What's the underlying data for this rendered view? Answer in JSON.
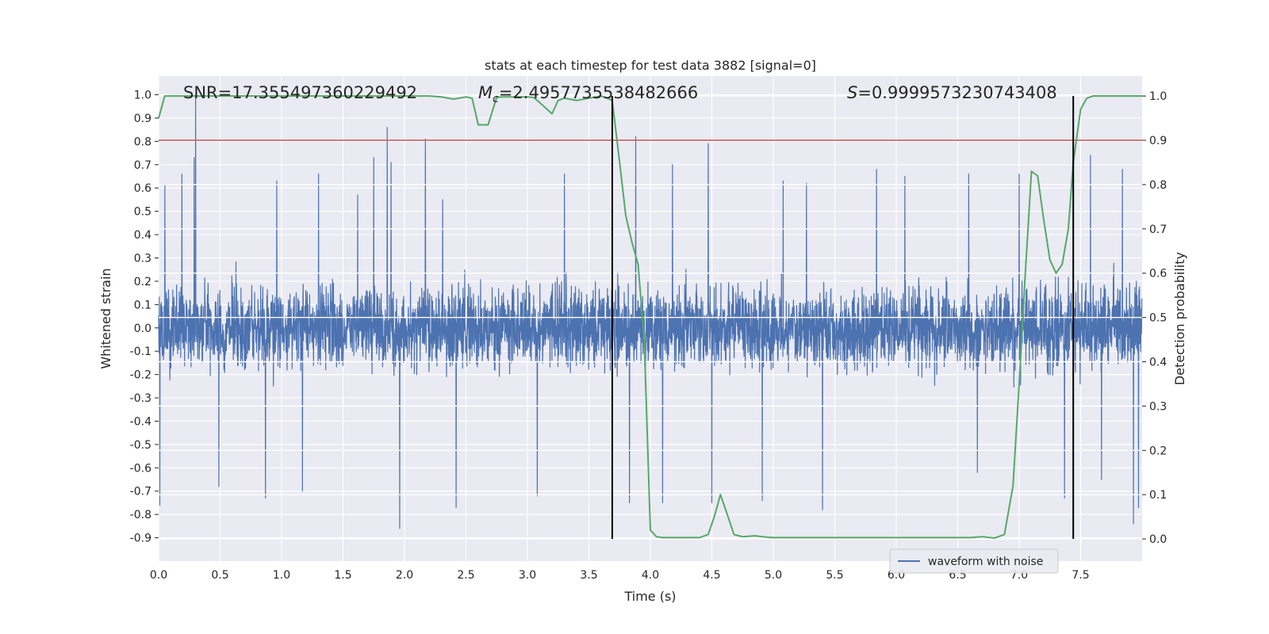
{
  "chart_data": {
    "type": "line",
    "title": "stats at each timestep for test data 3882 [signal=0]",
    "xlabel": "Time (s)",
    "ylabel_left": "Whitened strain",
    "ylabel_right": "Detection probability",
    "xlim": [
      0,
      8
    ],
    "ylim_left": [
      -1.0,
      1.08
    ],
    "ylim_right": [
      -0.05,
      1.045
    ],
    "x_ticks": [
      "0.0",
      "0.5",
      "1.0",
      "1.5",
      "2.0",
      "2.5",
      "3.0",
      "3.5",
      "4.0",
      "4.5",
      "5.0",
      "5.5",
      "6.0",
      "6.5",
      "7.0",
      "7.5"
    ],
    "y_ticks_left": [
      "1.0",
      "0.9",
      "0.8",
      "0.7",
      "0.6",
      "0.5",
      "0.4",
      "0.3",
      "0.2",
      "0.1",
      "0.0",
      "-0.1",
      "-0.2",
      "-0.3",
      "-0.4",
      "-0.5",
      "-0.6",
      "-0.7",
      "-0.8",
      "-0.9"
    ],
    "y_ticks_right": [
      "1.0",
      "0.9",
      "0.8",
      "0.7",
      "0.6",
      "0.5",
      "0.4",
      "0.3",
      "0.2",
      "0.1",
      "0.0"
    ],
    "grid": true,
    "legend_position": "lower-right",
    "annotations": {
      "snr": "SNR=17.355497360229492",
      "mc_symbol": "M",
      "mc_subscript": "c",
      "mc_value": "=2.4957735538482666",
      "s_symbol": "S",
      "s_value": "=0.9999573230743408"
    },
    "threshold_line": {
      "value": 0.9,
      "axis": "right",
      "color": "#c44e52"
    },
    "event_lines": [
      3.69,
      7.44
    ],
    "waveform": {
      "name": "waveform with noise",
      "color": "#4c72b0",
      "sample_count": 4096,
      "typical_max": 0.45,
      "typical_min": -0.45,
      "spikes": [
        {
          "x": 0.01,
          "y": -0.76
        },
        {
          "x": 0.05,
          "y": 0.61
        },
        {
          "x": 0.19,
          "y": 0.66
        },
        {
          "x": 0.29,
          "y": 0.73
        },
        {
          "x": 0.3,
          "y": -0.62
        },
        {
          "x": 0.3,
          "y": 1.0
        },
        {
          "x": 0.49,
          "y": -0.68
        },
        {
          "x": 0.87,
          "y": -0.73
        },
        {
          "x": 0.96,
          "y": 0.63
        },
        {
          "x": 1.17,
          "y": -0.7
        },
        {
          "x": 1.3,
          "y": 0.66
        },
        {
          "x": 1.62,
          "y": 0.57
        },
        {
          "x": 1.75,
          "y": 0.73
        },
        {
          "x": 1.86,
          "y": 0.86
        },
        {
          "x": 1.89,
          "y": 0.71
        },
        {
          "x": 1.96,
          "y": -0.86
        },
        {
          "x": 2.17,
          "y": 0.81
        },
        {
          "x": 2.31,
          "y": 0.55
        },
        {
          "x": 2.42,
          "y": -0.77
        },
        {
          "x": 3.08,
          "y": -0.72
        },
        {
          "x": 3.3,
          "y": 0.66
        },
        {
          "x": 3.83,
          "y": -0.75
        },
        {
          "x": 3.88,
          "y": 0.82
        },
        {
          "x": 4.1,
          "y": -0.75
        },
        {
          "x": 4.18,
          "y": 0.7
        },
        {
          "x": 4.47,
          "y": 0.79
        },
        {
          "x": 4.5,
          "y": -0.75
        },
        {
          "x": 4.91,
          "y": -0.74
        },
        {
          "x": 5.08,
          "y": 0.63
        },
        {
          "x": 5.27,
          "y": 0.62
        },
        {
          "x": 5.4,
          "y": -0.78
        },
        {
          "x": 5.84,
          "y": 0.68
        },
        {
          "x": 6.07,
          "y": 0.65
        },
        {
          "x": 6.59,
          "y": 0.66
        },
        {
          "x": 6.66,
          "y": -0.62
        },
        {
          "x": 7.0,
          "y": 0.66
        },
        {
          "x": 7.37,
          "y": -0.73
        },
        {
          "x": 7.58,
          "y": 0.74
        },
        {
          "x": 7.67,
          "y": -0.65
        },
        {
          "x": 7.84,
          "y": 0.68
        },
        {
          "x": 7.93,
          "y": -0.84
        },
        {
          "x": 7.97,
          "y": -0.77
        }
      ]
    },
    "probability": {
      "name": "detection probability",
      "color": "#55a868",
      "axis": "right",
      "x": [
        0.0,
        0.05,
        0.1,
        0.2,
        0.4,
        0.6,
        0.8,
        1.0,
        1.2,
        1.4,
        1.6,
        1.8,
        2.0,
        2.2,
        2.3,
        2.4,
        2.5,
        2.55,
        2.6,
        2.68,
        2.75,
        2.8,
        2.9,
        3.0,
        3.05,
        3.1,
        3.2,
        3.25,
        3.3,
        3.4,
        3.5,
        3.6,
        3.65,
        3.69,
        3.75,
        3.8,
        3.85,
        3.9,
        3.95,
        4.0,
        4.05,
        4.1,
        4.2,
        4.3,
        4.4,
        4.47,
        4.52,
        4.57,
        4.62,
        4.68,
        4.75,
        4.85,
        4.95,
        5.0,
        5.2,
        5.4,
        5.6,
        5.8,
        6.0,
        6.2,
        6.4,
        6.6,
        6.7,
        6.8,
        6.88,
        6.95,
        7.0,
        7.05,
        7.1,
        7.15,
        7.2,
        7.25,
        7.3,
        7.35,
        7.4,
        7.44,
        7.5,
        7.55,
        7.6,
        7.65,
        7.7,
        7.8,
        8.0
      ],
      "values": [
        0.95,
        1.0,
        1.0,
        1.0,
        1.0,
        1.0,
        1.0,
        1.0,
        1.0,
        1.0,
        1.0,
        1.0,
        1.0,
        1.0,
        0.998,
        0.993,
        0.998,
        0.995,
        0.935,
        0.935,
        0.997,
        0.998,
        0.998,
        0.998,
        0.997,
        0.985,
        0.96,
        0.99,
        0.995,
        0.99,
        0.995,
        1.0,
        0.995,
        0.99,
        0.85,
        0.73,
        0.67,
        0.62,
        0.45,
        0.02,
        0.005,
        0.003,
        0.003,
        0.003,
        0.003,
        0.01,
        0.05,
        0.1,
        0.06,
        0.01,
        0.005,
        0.007,
        0.004,
        0.003,
        0.003,
        0.003,
        0.003,
        0.003,
        0.003,
        0.003,
        0.003,
        0.003,
        0.005,
        0.002,
        0.01,
        0.12,
        0.35,
        0.6,
        0.83,
        0.82,
        0.72,
        0.63,
        0.6,
        0.62,
        0.7,
        0.85,
        0.97,
        0.995,
        1.0,
        1.0,
        1.0,
        1.0,
        1.0
      ]
    }
  }
}
